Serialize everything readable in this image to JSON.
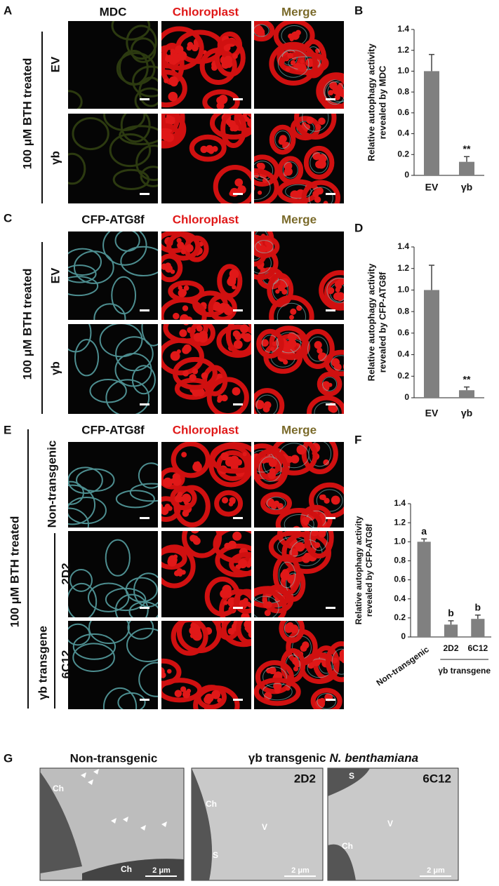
{
  "figure": {
    "panel_letters": [
      "A",
      "B",
      "C",
      "D",
      "E",
      "F",
      "G"
    ],
    "panel_a": {
      "column_headers": [
        "MDC",
        "Chloroplast",
        "Merge"
      ],
      "treatment": "100 μM BTH treated",
      "rows": [
        "EV",
        "γb"
      ]
    },
    "panel_c": {
      "column_headers": [
        "CFP-ATG8f",
        "Chloroplast",
        "Merge"
      ],
      "treatment": "100 μM BTH treated",
      "rows": [
        "EV",
        "γb"
      ]
    },
    "panel_e": {
      "column_headers": [
        "CFP-ATG8f",
        "Chloroplast",
        "Merge"
      ],
      "treatment": "100 μM BTH treated",
      "group": "γb transgene",
      "rows": [
        "Non-transgenic",
        "2D2",
        "6C12"
      ]
    },
    "panel_g": {
      "titles": [
        "Non-transgenic",
        "γb transgenic",
        "N. benthamiana"
      ],
      "images": [
        {
          "labels": [
            "Ch",
            "Ch"
          ],
          "scale": "2 μm"
        },
        {
          "tag": "2D2",
          "labels": [
            "Ch",
            "S",
            "V"
          ],
          "scale": "2 μm"
        },
        {
          "tag": "6C12",
          "labels": [
            "S",
            "Ch",
            "V"
          ],
          "scale": "2 μm"
        }
      ]
    }
  },
  "chart_data": [
    {
      "type": "bar",
      "y_label": [
        "Relative autophagy activity",
        "revealed by MDC"
      ],
      "categories": [
        "EV",
        "γb"
      ],
      "values": [
        1.0,
        0.13
      ],
      "errors": [
        0.16,
        0.05
      ],
      "annotations": [
        null,
        "**"
      ],
      "color": "#808080",
      "ylim": [
        0,
        1.4
      ],
      "yticks": [
        0,
        0.2,
        0.4,
        0.6,
        0.8,
        {
          "value": 1,
          "label": "1.0"
        },
        1.2,
        1.4
      ]
    },
    {
      "type": "bar",
      "y_label": [
        "Relative autophagy activity",
        "revealed by CFP-ATG8f"
      ],
      "categories": [
        "EV",
        "γb"
      ],
      "values": [
        1.0,
        0.07
      ],
      "errors": [
        0.23,
        0.03
      ],
      "annotations": [
        null,
        "**"
      ],
      "color": "#808080",
      "ylim": [
        0,
        1.4
      ],
      "yticks": [
        0,
        0.2,
        0.4,
        0.6,
        0.8,
        {
          "value": 1,
          "label": "1.0"
        },
        1.2,
        1.4
      ]
    },
    {
      "type": "bar",
      "y_label": [
        "Relative autophagy activity",
        "revealed by CFP-ATG8f"
      ],
      "categories": [
        "Non-transgenic",
        "2D2",
        "6C12"
      ],
      "values": [
        1.0,
        0.13,
        0.19
      ],
      "errors": [
        0.03,
        0.04,
        0.04
      ],
      "annotations": [
        "a",
        "b",
        "b"
      ],
      "group_label": "γb transgene",
      "color": "#808080",
      "ylim": [
        0,
        1.4
      ],
      "yticks": [
        0,
        0.2,
        0.4,
        0.6,
        0.8,
        {
          "value": 1,
          "label": "1.0"
        },
        1.2,
        1.4
      ]
    }
  ]
}
